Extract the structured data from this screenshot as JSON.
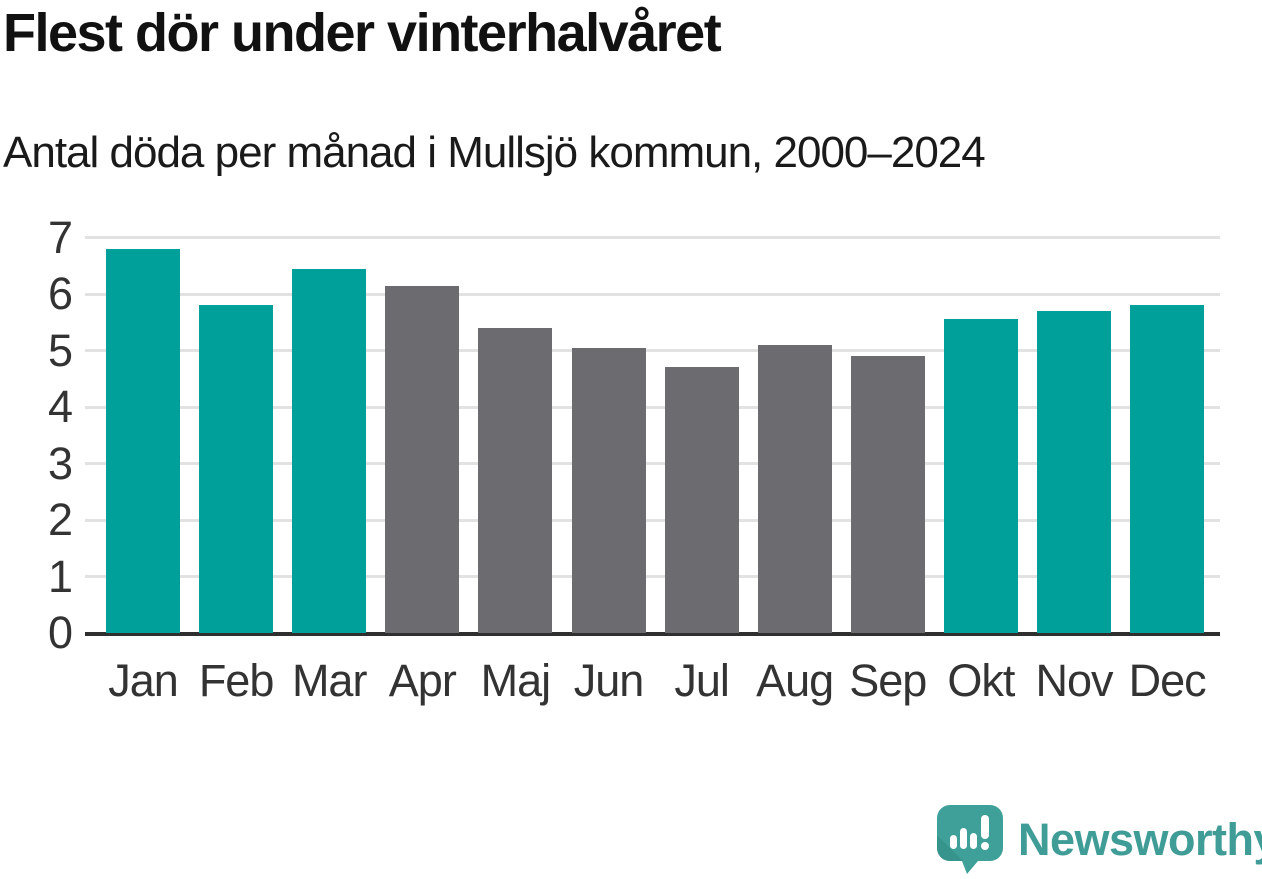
{
  "header": {
    "title": "Flest dör under vinterhalvåret",
    "subtitle": "Antal döda per månad i Mullsjö kommun, 2000–2024"
  },
  "chart_data": {
    "type": "bar",
    "title": "Flest dör under vinterhalvåret",
    "subtitle": "Antal döda per månad i Mullsjö kommun, 2000–2024",
    "categories": [
      "Jan",
      "Feb",
      "Mar",
      "Apr",
      "Maj",
      "Jun",
      "Jul",
      "Aug",
      "Sep",
      "Okt",
      "Nov",
      "Dec"
    ],
    "values": [
      6.8,
      5.8,
      6.45,
      6.15,
      5.4,
      5.05,
      4.7,
      5.1,
      4.9,
      5.55,
      5.7,
      5.8
    ],
    "bar_color_keys": [
      "winter",
      "winter",
      "winter",
      "summer",
      "summer",
      "summer",
      "summer",
      "summer",
      "summer",
      "winter",
      "winter",
      "winter"
    ],
    "colors": {
      "winter": "#00a09a",
      "summer": "#6c6c70",
      "gridline": "#e2e2e2",
      "axis": "#2f2f2f",
      "tick_text": "#333333"
    },
    "xlabel": "",
    "ylabel": "",
    "ylim": [
      0,
      7
    ],
    "yticks": [
      0,
      1,
      2,
      3,
      4,
      5,
      6,
      7
    ],
    "grid": true,
    "legend": "none"
  },
  "footer": {
    "brand": "Newsworthy",
    "brand_color": "#3f9c96",
    "logo_icon": "newsworthy-logo",
    "logo_bubble_color": "#3fa099",
    "logo_bubble_shade_color": "#37948d"
  }
}
